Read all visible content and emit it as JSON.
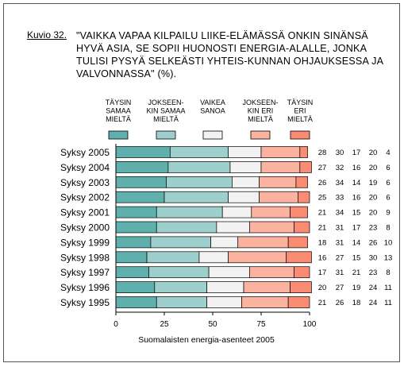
{
  "figure": {
    "label": "Kuvio 32.",
    "title": "\"VAIKKA VAPAA KILPAILU LIIKE-ELÄMÄSSÄ ONKIN SINÄNSÄ HYVÄ ASIA, SE SOPII HUONOSTI ENERGIA-ALALLE, JONKA TULISI PYSYÄ SELKEÄSTI YHTEIS-KUNNAN OHJAUKSESSA JA VALVONNASSA\" (%)."
  },
  "chart_data": {
    "type": "bar",
    "orientation": "horizontal",
    "stacked": true,
    "categories": [
      "Syksy 2005",
      "Syksy 2004",
      "Syksy 2003",
      "Syksy 2002",
      "Syksy 2001",
      "Syksy 2000",
      "Syksy 1999",
      "Syksy 1998",
      "Syksy 1997",
      "Syksy 1996",
      "Syksy 1995"
    ],
    "series": [
      {
        "name": "TÄYSIN SAMAA MIELTÄ",
        "label_lines": [
          "TÄYSIN",
          "SAMAA",
          "MIELTÄ"
        ],
        "color": "#5fb0ac",
        "values": [
          28,
          27,
          26,
          25,
          21,
          21,
          18,
          16,
          17,
          20,
          21
        ]
      },
      {
        "name": "JOKSEENKIN SAMAA MIELTÄ",
        "label_lines": [
          "JOKSEEN-",
          "KIN SAMAA",
          "MIELTÄ"
        ],
        "color": "#9dcfcc",
        "values": [
          30,
          32,
          34,
          33,
          34,
          31,
          31,
          27,
          31,
          27,
          26
        ]
      },
      {
        "name": "VAIKEA SANOA",
        "label_lines": [
          "VAIKEA",
          "SANOA"
        ],
        "color": "#f2f2f2",
        "values": [
          17,
          16,
          14,
          16,
          15,
          17,
          14,
          15,
          21,
          19,
          18
        ]
      },
      {
        "name": "JOKSEENKIN ERI MIELTÄ",
        "label_lines": [
          "JOKSEEN-",
          "KIN ERI",
          "MIELTÄ"
        ],
        "color": "#fbb29e",
        "values": [
          20,
          20,
          19,
          20,
          20,
          23,
          26,
          30,
          23,
          24,
          24
        ]
      },
      {
        "name": "TÄYSIN ERI MIELTÄ",
        "label_lines": [
          "TÄYSIN",
          "ERI",
          "MIELTÄ"
        ],
        "color": "#f98c72",
        "values": [
          4,
          6,
          6,
          6,
          9,
          8,
          10,
          13,
          8,
          11,
          11
        ]
      }
    ],
    "value_labels": [
      [
        "28",
        "30",
        "17",
        "20",
        "4"
      ],
      [
        "27",
        "32",
        "16",
        "20",
        "6"
      ],
      [
        "26",
        "34",
        "14",
        "19",
        "6"
      ],
      [
        "25",
        "33",
        "16",
        "20",
        "6"
      ],
      [
        "21",
        "34",
        "15",
        "20",
        "9"
      ],
      [
        "21",
        "31",
        "17",
        "23",
        "8"
      ],
      [
        "18",
        "31",
        "14",
        "26",
        "10"
      ],
      [
        "16",
        "27",
        "15",
        "30",
        "13"
      ],
      [
        "17",
        "31",
        "21",
        "23",
        "8"
      ],
      [
        "20",
        "27",
        "19",
        "24",
        "11"
      ],
      [
        "21",
        "26",
        "18",
        "24",
        "11"
      ]
    ],
    "xlim": [
      0,
      100
    ],
    "xticks": [
      "0",
      "25",
      "50",
      "75",
      "100"
    ],
    "xlabel": "Suomalaisten energia-asenteet 2005",
    "grid": false,
    "legend_position": "top"
  }
}
